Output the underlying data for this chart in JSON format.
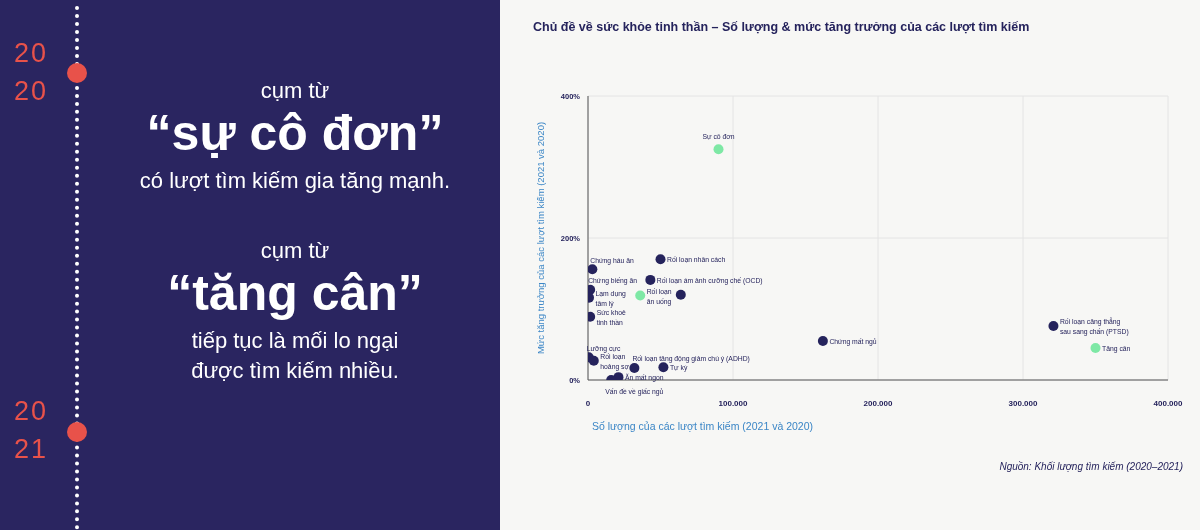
{
  "chart_data": {
    "type": "scatter",
    "title": "Chủ đề về sức khỏe tinh thần – Số lượng & mức tăng trưởng của các lượt tìm kiếm",
    "xlabel": "Số lượng của các lượt tìm kiếm (2021 và 2020)",
    "ylabel": "Mức tăng trưởng của các lượt tìm kiếm (2021 và 2020)",
    "xlim": [
      0,
      400000
    ],
    "xticks": [
      0,
      {
        "value": 100000,
        "label": "100.000"
      },
      {
        "value": 200000,
        "label": "200.000"
      },
      {
        "value": 300000,
        "label": "300.000"
      },
      {
        "value": 400000,
        "label": "400.000"
      }
    ],
    "ylim": [
      0,
      400
    ],
    "yticks": [
      {
        "value": 0,
        "label": "0%"
      },
      {
        "value": 200,
        "label": "200%"
      },
      {
        "value": 400,
        "label": "400%"
      }
    ],
    "grid": true,
    "marker": "circle",
    "series": [
      {
        "name": "Sự cô đơn",
        "color": "#7ee8a5",
        "x": [
          90000
        ],
        "values": [
          325
        ]
      },
      {
        "name": "Chứng háu ăn",
        "color": "#25235c",
        "x": [
          3000
        ],
        "values": [
          156
        ]
      },
      {
        "name": "Rối loạn nhân cách",
        "color": "#25235c",
        "x": [
          50000
        ],
        "values": [
          170
        ]
      },
      {
        "name": "Chứng biếng ăn",
        "color": "#25235c",
        "x": [
          1500
        ],
        "values": [
          127
        ]
      },
      {
        "name": "Rối loạn ám ảnh cưỡng chế (OCD)",
        "color": "#25235c",
        "x": [
          43000
        ],
        "values": [
          141
        ]
      },
      {
        "name": "Lạm dụng tâm lý",
        "color": "#25235c",
        "x": [
          700
        ],
        "values": [
          116
        ]
      },
      {
        "name": "Rối loạn ăn uống",
        "color": "#7ee8a5",
        "x": [
          36000
        ],
        "values": [
          119
        ]
      },
      {
        "color": "#25235c",
        "x": [
          64000
        ],
        "values": [
          120
        ]
      },
      {
        "name": "Sức khoẻ tinh thần",
        "color": "#25235c",
        "x": [
          1500
        ],
        "values": [
          89
        ]
      },
      {
        "name": "Lưỡng cực",
        "color": "#25235c",
        "x": [
          500
        ],
        "values": [
          32
        ]
      },
      {
        "name": "Rối loạn hoảng sợ",
        "color": "#25235c",
        "x": [
          4000
        ],
        "values": [
          27
        ]
      },
      {
        "name": "Rối loạn tăng động giảm chú ý (ADHD)",
        "color": "#25235c",
        "x": [
          32000
        ],
        "values": [
          17
        ]
      },
      {
        "name": "Tự kỷ",
        "color": "#25235c",
        "x": [
          52000
        ],
        "values": [
          18
        ]
      },
      {
        "name": "Ăn mất ngon",
        "color": "#25235c",
        "x": [
          21000
        ],
        "values": [
          4
        ]
      },
      {
        "name": "Vấn đề về giấc ngủ",
        "color": "#25235c",
        "x": [
          16000
        ],
        "values": [
          0
        ]
      },
      {
        "name": "Chứng mất ngủ",
        "color": "#25235c",
        "x": [
          162000
        ],
        "values": [
          55
        ]
      },
      {
        "name": "Rối loạn căng thẳng sau sang chấn (PTSD)",
        "color": "#25235c",
        "x": [
          321000
        ],
        "values": [
          76
        ]
      },
      {
        "name": "Tăng cân",
        "color": "#7ee8a5",
        "x": [
          350000
        ],
        "values": [
          45
        ]
      }
    ],
    "annotations": [
      "2020",
      "cụm từ",
      "“sự cô đơn”",
      "có lượt tìm kiếm gia tăng mạnh.",
      "cụm từ",
      "“tăng cân”",
      "tiếp tục là mối lo ngại được tìm kiếm nhiều.",
      "2021",
      "Nguồn: Khối lượng tìm kiếm (2020–2021)"
    ]
  }
}
